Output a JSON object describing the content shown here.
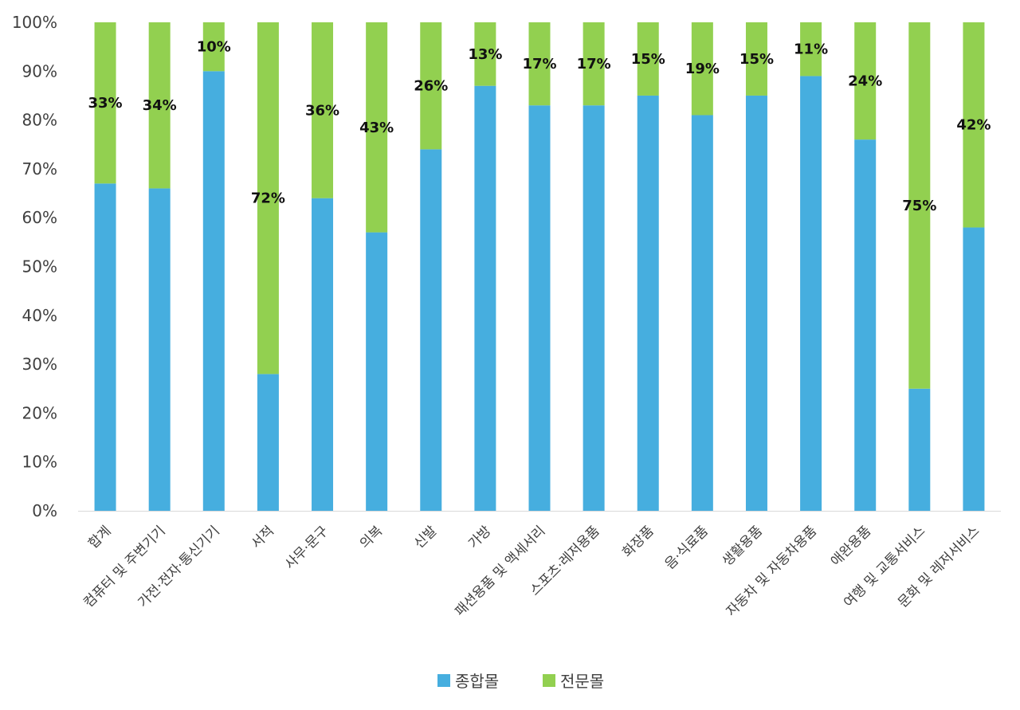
{
  "chart_data": {
    "type": "bar",
    "stacked": true,
    "categories": [
      "합계",
      "컴퓨터 및 주변기기",
      "가전·전자·통신기기",
      "서적",
      "사무·문구",
      "의복",
      "신발",
      "가방",
      "패션용품 및 액세서리",
      "스포츠·레저용품",
      "화장품",
      "음·식료품",
      "생활용품",
      "자동차 및 자동차용품",
      "애완용품",
      "여행 및 교통서비스",
      "문화 및 레저서비스"
    ],
    "series": [
      {
        "name": "종합몰",
        "color": "#46AEDF",
        "values": [
          67,
          66,
          90,
          28,
          64,
          57,
          74,
          87,
          83,
          83,
          85,
          81,
          85,
          89,
          76,
          25,
          58
        ]
      },
      {
        "name": "전문몰",
        "color": "#92D050",
        "values": [
          33,
          34,
          10,
          72,
          36,
          43,
          26,
          13,
          17,
          17,
          15,
          19,
          15,
          11,
          24,
          75,
          42
        ]
      }
    ],
    "data_labels": [
      "33%",
      "34%",
      "10%",
      "72%",
      "36%",
      "43%",
      "26%",
      "13%",
      "17%",
      "17%",
      "15%",
      "19%",
      "15%",
      "11%",
      "24%",
      "75%",
      "42%"
    ],
    "y_ticks": [
      "0%",
      "10%",
      "20%",
      "30%",
      "40%",
      "50%",
      "60%",
      "70%",
      "80%",
      "90%",
      "100%"
    ],
    "ylim": [
      0,
      100
    ],
    "title": "",
    "xlabel": "",
    "ylabel": "",
    "grid": false,
    "legend_position": "bottom"
  }
}
